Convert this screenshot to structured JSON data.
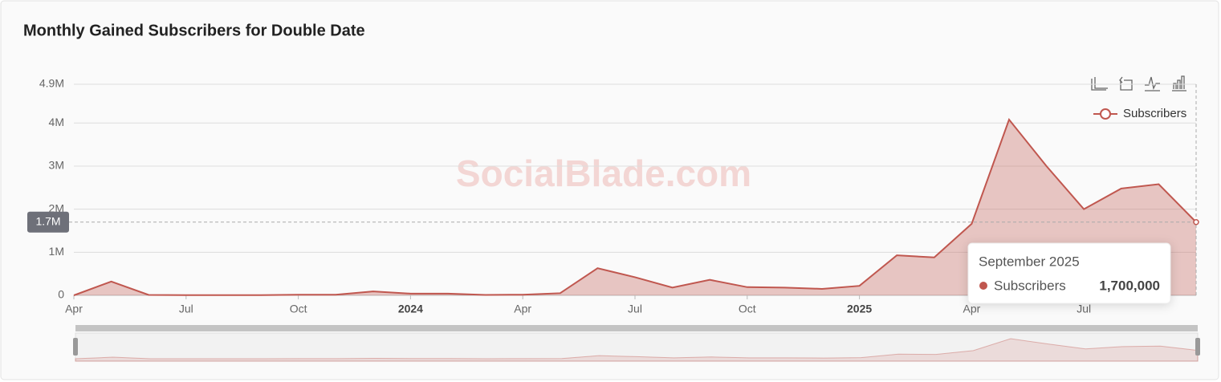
{
  "chart_data": {
    "type": "area",
    "title": "Monthly Gained Subscribers for Double Date",
    "watermark": "SocialBlade.com",
    "categories": [
      "Apr",
      null,
      null,
      "Jul",
      null,
      null,
      "Oct",
      null,
      null,
      "2024",
      null,
      null,
      "Apr",
      null,
      null,
      "Jul",
      null,
      null,
      "Oct",
      null,
      null,
      "2025",
      null,
      null,
      "Apr",
      null,
      null,
      "Jul",
      null,
      null,
      null
    ],
    "series": [
      {
        "name": "Subscribers",
        "color": "#c0574f",
        "values": [
          0,
          320000,
          10000,
          5000,
          5000,
          5000,
          15000,
          15000,
          90000,
          40000,
          40000,
          10000,
          15000,
          50000,
          630000,
          420000,
          180000,
          360000,
          190000,
          180000,
          150000,
          220000,
          930000,
          880000,
          1660000,
          4080000,
          3000000,
          2000000,
          2480000,
          2580000,
          1700000
        ]
      }
    ],
    "ylim": [
      0,
      4900000
    ],
    "yticks": [
      0,
      {
        "value": 1000000,
        "label": "1M"
      },
      {
        "value": 2000000,
        "label": "2M"
      },
      {
        "value": 3000000,
        "label": "3M"
      },
      {
        "value": 4000000,
        "label": "4M"
      },
      {
        "value": 4900000,
        "label": "4.9M"
      }
    ],
    "grid": true,
    "legend": "top-right",
    "axis_pointer": {
      "value": 1700000,
      "label": "1.7M"
    },
    "tooltip": {
      "title": "September 2025",
      "value": 1700000,
      "value_label": "1,700,000"
    }
  }
}
